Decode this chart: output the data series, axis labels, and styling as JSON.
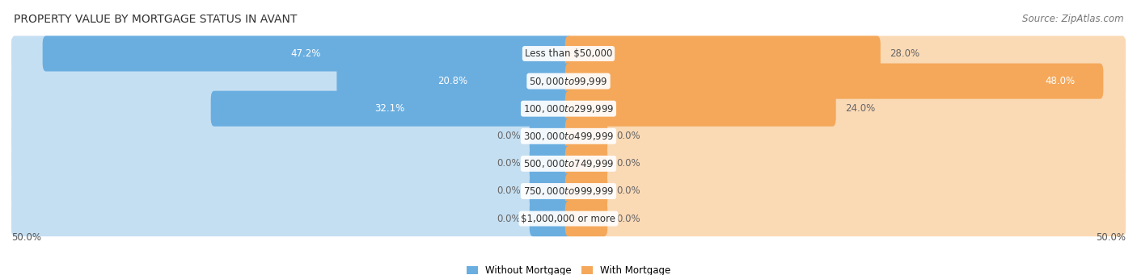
{
  "title": "PROPERTY VALUE BY MORTGAGE STATUS IN AVANT",
  "source": "Source: ZipAtlas.com",
  "categories": [
    "Less than $50,000",
    "$50,000 to $99,999",
    "$100,000 to $299,999",
    "$300,000 to $499,999",
    "$500,000 to $749,999",
    "$750,000 to $999,999",
    "$1,000,000 or more"
  ],
  "without_mortgage": [
    47.2,
    20.8,
    32.1,
    0.0,
    0.0,
    0.0,
    0.0
  ],
  "with_mortgage": [
    28.0,
    48.0,
    24.0,
    0.0,
    0.0,
    0.0,
    0.0
  ],
  "blue_color": "#6aaee0",
  "orange_color": "#f5a85a",
  "bar_bg_blue": "#c5dff2",
  "bar_bg_orange": "#fad9b5",
  "row_bg_color": "#e8eaed",
  "row_inner_bg": "#f0f2f5",
  "xlim": 50.0,
  "zero_stub": 3.5,
  "legend_without": "Without Mortgage",
  "legend_with": "With Mortgage",
  "title_fontsize": 10,
  "source_fontsize": 8.5,
  "label_fontsize": 8.5,
  "axis_label_fontsize": 8.5
}
